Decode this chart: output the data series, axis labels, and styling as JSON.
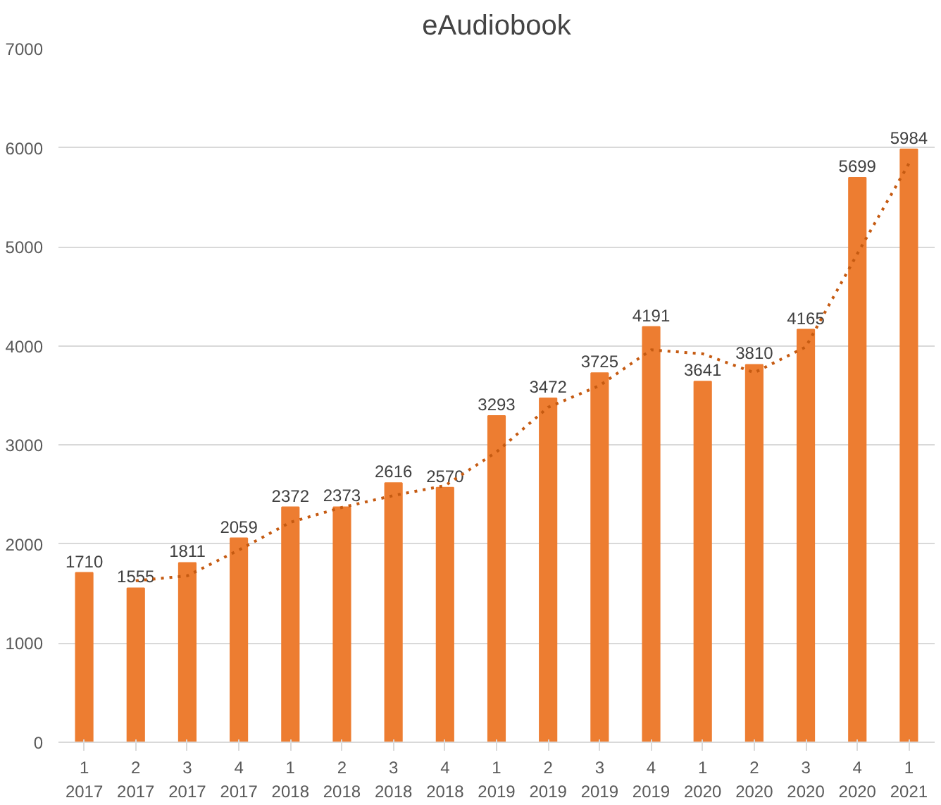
{
  "chart_data": {
    "type": "bar",
    "title": "eAudiobook",
    "categories": [
      "1\n2017",
      "2\n2017",
      "3\n2017",
      "4\n2017",
      "1\n2018",
      "2\n2018",
      "3\n2018",
      "4\n2018",
      "1\n2019",
      "2\n2019",
      "3\n2019",
      "4\n2019",
      "1\n2020",
      "2\n2020",
      "3\n2020",
      "4\n2020",
      "1\n2021"
    ],
    "series": [
      {
        "color": "#ed7d31",
        "values": [
          1710,
          1555,
          1811,
          2059,
          2372,
          2373,
          2616,
          2570,
          3293,
          3472,
          3725,
          4191,
          3641,
          3810,
          4165,
          5699,
          5984
        ],
        "data_labels": true
      },
      {
        "type": "line",
        "color": "#c55a11",
        "line_style": "dotted",
        "values": [
          null,
          1630,
          1680,
          1940,
          2220,
          2370,
          2490,
          2590,
          2930,
          3380,
          3600,
          3960,
          3920,
          3730,
          3990,
          4930,
          5840
        ]
      }
    ],
    "ylim": [
      0,
      7000
    ],
    "yticks": [
      0,
      1000,
      2000,
      3000,
      4000,
      5000,
      6000,
      7000
    ],
    "grid": "y"
  }
}
